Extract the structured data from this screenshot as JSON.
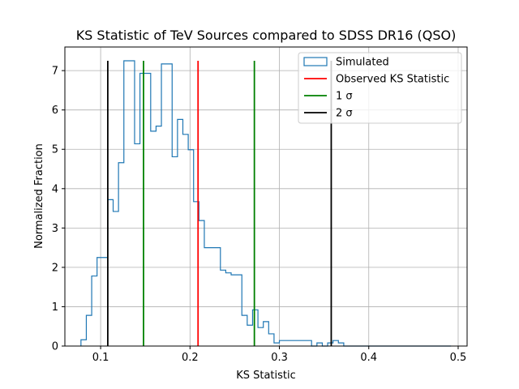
{
  "chart_data": {
    "type": "histogram",
    "title": "KS Statistic of TeV Sources compared to SDSS DR16 (QSO)",
    "xlabel": "KS Statistic",
    "ylabel": "Normalized Fraction",
    "xlim": [
      0.06,
      0.51
    ],
    "ylim": [
      0,
      7.6
    ],
    "xticks": [
      0.1,
      0.2,
      0.3,
      0.4,
      0.5
    ],
    "xtick_labels": [
      "0.1",
      "0.2",
      "0.3",
      "0.4",
      "0.5"
    ],
    "yticks": [
      0,
      1,
      2,
      3,
      4,
      5,
      6,
      7
    ],
    "ytick_labels": [
      "0",
      "1",
      "2",
      "3",
      "4",
      "5",
      "6",
      "7"
    ],
    "grid": true,
    "legend_position": "top-right",
    "histogram": {
      "name": "Simulated",
      "color": "#1f77b4",
      "bin_edges": [
        0.078,
        0.084,
        0.09,
        0.096,
        0.102,
        0.108,
        0.114,
        0.12,
        0.126,
        0.132,
        0.138,
        0.144,
        0.15,
        0.156,
        0.162,
        0.168,
        0.174,
        0.18,
        0.186,
        0.192,
        0.198,
        0.204,
        0.21,
        0.216,
        0.222,
        0.228,
        0.234,
        0.24,
        0.246,
        0.252,
        0.258,
        0.264,
        0.27,
        0.276,
        0.282,
        0.288,
        0.294,
        0.3,
        0.306,
        0.312,
        0.318,
        0.324,
        0.33,
        0.336,
        0.342,
        0.348,
        0.354,
        0.36,
        0.366,
        0.372,
        0.378,
        0.384,
        0.39,
        0.396,
        0.402,
        0.408,
        0.414,
        0.42,
        0.426,
        0.432,
        0.438,
        0.444,
        0.45,
        0.456,
        0.462,
        0.468,
        0.474,
        0.48,
        0.486,
        0.492
      ],
      "values": [
        0.16,
        0.78,
        1.78,
        2.25,
        2.25,
        3.72,
        3.42,
        4.66,
        7.25,
        7.25,
        5.14,
        6.93,
        6.93,
        5.46,
        5.59,
        7.17,
        7.17,
        4.81,
        5.76,
        5.38,
        4.99,
        3.67,
        3.19,
        2.5,
        2.5,
        2.5,
        1.93,
        1.86,
        1.81,
        1.81,
        0.78,
        0.53,
        0.92,
        0.47,
        0.62,
        0.31,
        0.08,
        0.14,
        0.14,
        0.14,
        0.14,
        0.14,
        0.14,
        0.0,
        0.08,
        0.0,
        0.08,
        0.14,
        0.08,
        0.0,
        0.0,
        0.0,
        0.0,
        0.0,
        0.0,
        0.0,
        0.0,
        0.0,
        0.0,
        0.0,
        0.0,
        0.0,
        0.0,
        0.0,
        0.0,
        0.0,
        0.0,
        0.0,
        0.0
      ]
    },
    "vlines": [
      {
        "name": "Observed KS Statistic",
        "color": "#ff0000",
        "x": [
          0.209
        ]
      },
      {
        "name": "1 σ",
        "color": "#008000",
        "x": [
          0.148,
          0.272
        ]
      },
      {
        "name": "2 σ",
        "color": "#000000",
        "x": [
          0.108,
          0.358
        ]
      }
    ],
    "vline_top": 7.25
  }
}
